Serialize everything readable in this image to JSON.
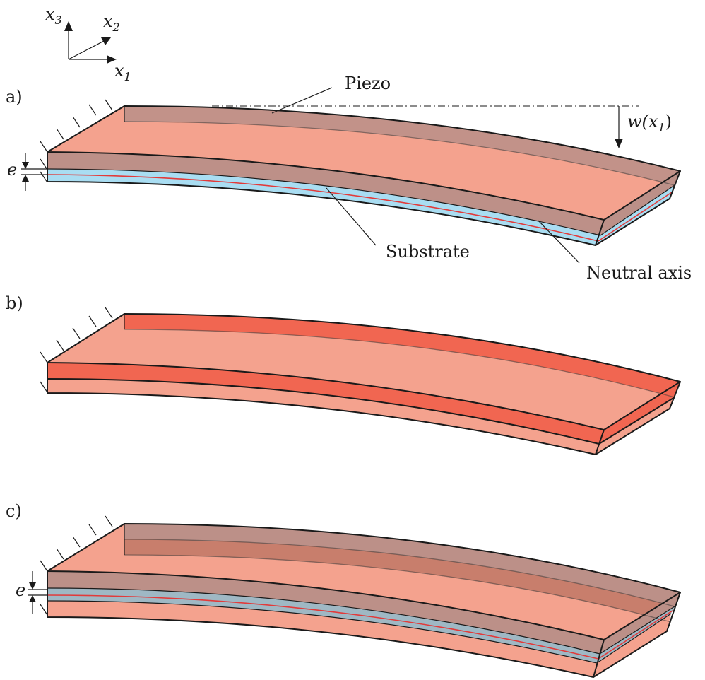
{
  "axes": {
    "x1": "x",
    "x1_sub": "1",
    "x2": "x",
    "x2_sub": "2",
    "x3": "x",
    "x3_sub": "3"
  },
  "panels": [
    {
      "tag": "a)",
      "labels": {
        "piezo": "Piezo",
        "substrate": "Substrate",
        "neutral_axis": "Neutral axis",
        "deflection": "w(x",
        "deflection_sub": "1",
        "deflection_close": ")",
        "offset": "e"
      }
    },
    {
      "tag": "b)"
    },
    {
      "tag": "c)",
      "labels": {
        "offset": "e"
      }
    }
  ],
  "colors": {
    "piezo_light": "#F4A28E",
    "piezo_dark_top": "#BC9088",
    "piezo_active": "#F16651",
    "substrate": "#A9DDF2",
    "neutral_axis": "#E23A3A"
  }
}
